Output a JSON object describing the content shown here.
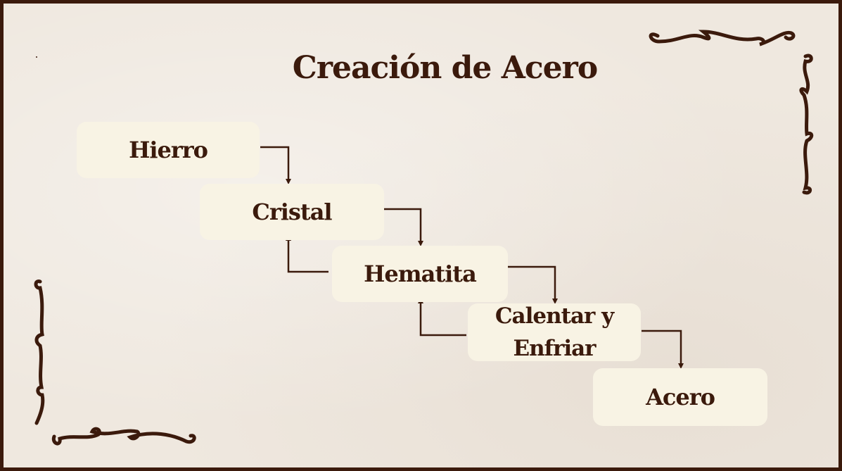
{
  "title": "Creación de Acero",
  "steps": [
    {
      "label": "Hierro"
    },
    {
      "label": "Cristal"
    },
    {
      "label": "Hematita"
    },
    {
      "label": "Calentar y Enfriar"
    },
    {
      "label": "Acero"
    }
  ],
  "colors": {
    "background": "#efe8df",
    "box": "#f8f3e4",
    "ink": "#3b1a0c"
  }
}
